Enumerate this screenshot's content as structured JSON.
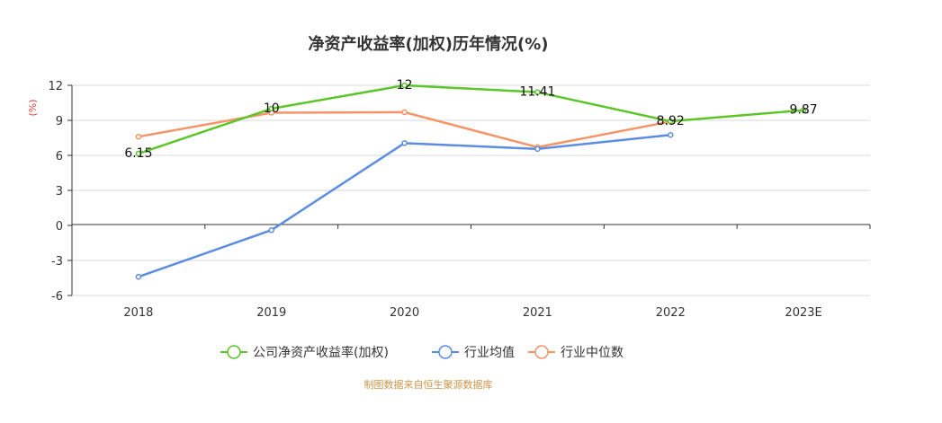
{
  "chart_data": {
    "type": "line",
    "title": "净资产收益率(加权)历年情况(%)",
    "y_unit": "(%)",
    "categories": [
      "2018",
      "2019",
      "2020",
      "2021",
      "2022",
      "2023E"
    ],
    "ylim": [
      -6,
      12
    ],
    "yticks": [
      12,
      9,
      6,
      3,
      0,
      -3,
      -6
    ],
    "grid": true,
    "legend_position": "bottom",
    "series": [
      {
        "name": "公司净资产收益率(加权)",
        "color": "#5cc52a",
        "values": [
          6.15,
          10,
          12,
          11.41,
          8.92,
          9.87
        ],
        "labels": [
          "6.15",
          "10",
          "12",
          "11.41",
          "8.92",
          "9.87"
        ]
      },
      {
        "name": "行业均值",
        "color": "#5b8de0",
        "values": [
          -4.4,
          -0.4,
          7.05,
          6.55,
          7.75,
          null
        ]
      },
      {
        "name": "行业中位数",
        "color": "#f69466",
        "values": [
          7.6,
          9.65,
          9.7,
          6.7,
          8.9,
          null
        ]
      }
    ],
    "source": "制图数据来自恒生聚源数据库"
  }
}
